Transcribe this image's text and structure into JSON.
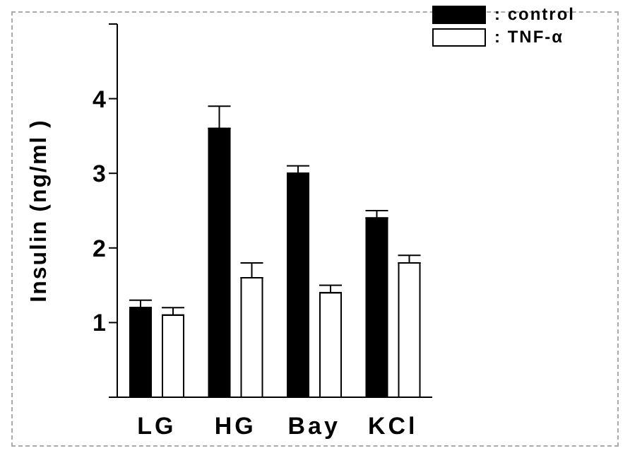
{
  "chart_data": {
    "type": "bar",
    "ylabel": "Insulin (ng/ml )",
    "categories": [
      "LG",
      "HG",
      "Bay",
      "KCl"
    ],
    "series": [
      {
        "name": ": control",
        "color": "#000000",
        "values": [
          1.2,
          3.6,
          3.0,
          2.4
        ],
        "errors": [
          [
            1.2,
            1.3
          ],
          [
            3.6,
            3.9
          ],
          [
            3.0,
            3.1
          ],
          [
            2.4,
            2.5
          ]
        ]
      },
      {
        "name": ": TNF-α",
        "color": "#ffffff",
        "values": [
          1.1,
          1.6,
          1.4,
          1.8
        ],
        "errors": [
          [
            1.1,
            1.2
          ],
          [
            1.6,
            1.8
          ],
          [
            1.4,
            1.5
          ],
          [
            1.8,
            1.9
          ]
        ]
      }
    ],
    "ylim": [
      0,
      5
    ],
    "yticks": [
      {
        "value": 0,
        "label": null
      },
      1,
      2,
      3,
      4,
      {
        "value": 5,
        "label": null
      }
    ],
    "grid": false,
    "legend": "top right"
  }
}
